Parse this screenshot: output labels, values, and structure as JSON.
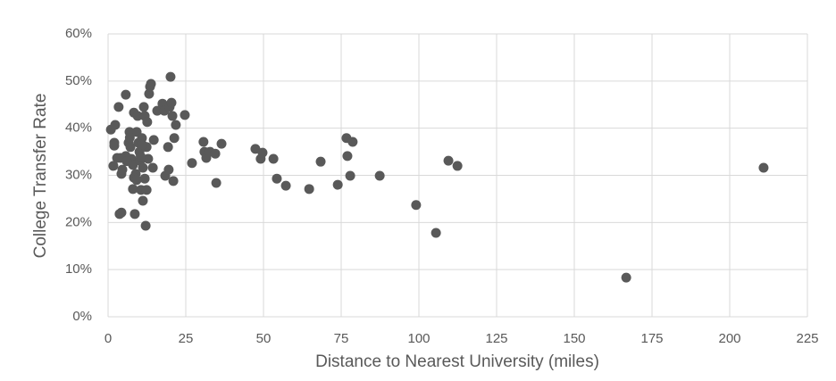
{
  "chart_data": {
    "type": "scatter",
    "xlabel": "Distance to Nearest University (miles)",
    "ylabel": "College Transfer Rate",
    "color": "#595959",
    "grid": true,
    "xlim": [
      0,
      225
    ],
    "xticks": [
      0,
      25,
      50,
      75,
      100,
      125,
      150,
      175,
      200,
      225
    ],
    "ylim": [
      0,
      60
    ],
    "yticks": [
      {
        "value": 0,
        "label": "0%"
      },
      {
        "value": 10,
        "label": "10%"
      },
      {
        "value": 20,
        "label": "20%"
      },
      {
        "value": 30,
        "label": "30%"
      },
      {
        "value": 40,
        "label": "40%"
      },
      {
        "value": 50,
        "label": "50%"
      },
      {
        "value": 60,
        "label": "60%"
      }
    ],
    "x": [
      0.9,
      2.3,
      2,
      2,
      1.7,
      2.9,
      3.4,
      3.7,
      4.3,
      4.3,
      4.6,
      5.7,
      5.7,
      6.9,
      6.6,
      7.2,
      7.5,
      8,
      8,
      8.3,
      8.6,
      8.9,
      9.2,
      9.5,
      9.8,
      10.1,
      10.3,
      10.6,
      10.9,
      11.2,
      11.2,
      11.5,
      11.8,
      11.8,
      12.1,
      12.4,
      12.4,
      12.6,
      12.9,
      13.2,
      13.5,
      13.8,
      14.4,
      14.7,
      15.8,
      17.5,
      18.1,
      18.4,
      19.3,
      19.5,
      19.8,
      20.1,
      20.4,
      20.7,
      21,
      21.3,
      21.8,
      24.7,
      27,
      30.7,
      31,
      31.6,
      32.8,
      34.5,
      34.8,
      36.5,
      47.4,
      49.1,
      49.7,
      53.2,
      54.3,
      57.2,
      64.7,
      68.4,
      73.9,
      76.7,
      77,
      77.9,
      78.7,
      87.4,
      99.1,
      105.5,
      109.5,
      112.4,
      166.7,
      210.9,
      4,
      8.3,
      9.2,
      7,
      10.5,
      11,
      6
    ],
    "y": [
      39.7,
      40.7,
      36.9,
      36.3,
      32,
      33.7,
      44.5,
      21.8,
      22.1,
      30.3,
      31.2,
      47.1,
      34.1,
      39.2,
      36.9,
      36,
      33.5,
      32.2,
      27.1,
      43.3,
      21.8,
      30.3,
      39.2,
      42.6,
      36.9,
      35,
      33.1,
      26.9,
      37.9,
      31.6,
      24.6,
      44.5,
      42.6,
      29.3,
      19.3,
      26.9,
      36,
      41.3,
      33.5,
      47.3,
      48.8,
      49.4,
      31.6,
      37.5,
      43.7,
      45.2,
      43.7,
      29.9,
      36,
      31.2,
      44.5,
      50.9,
      45.4,
      42.6,
      28.8,
      37.9,
      40.7,
      42.8,
      32.6,
      37.1,
      35,
      33.7,
      35,
      34.6,
      28.4,
      36.7,
      35.6,
      33.5,
      34.8,
      33.5,
      29.3,
      27.8,
      27.1,
      32.9,
      28,
      37.9,
      34.1,
      29.9,
      37.1,
      29.9,
      23.7,
      17.8,
      33.1,
      32,
      8.3,
      31.6,
      33.7,
      29.5,
      29,
      38,
      34,
      36.5,
      33
    ]
  }
}
